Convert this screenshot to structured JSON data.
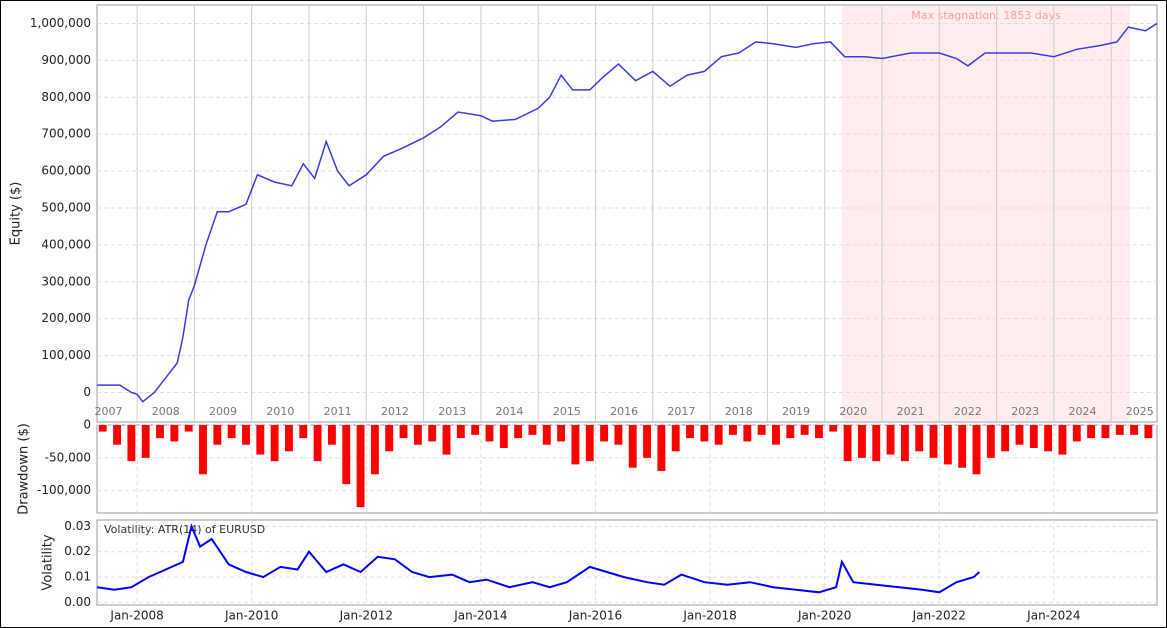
{
  "chart_data": [
    {
      "type": "line",
      "y_label": "Equity ($)",
      "color": "#3a3ae0",
      "xlim": [
        2007.3,
        2025.8
      ],
      "ylim": [
        -80000,
        1050000
      ],
      "yticks": [
        0,
        {
          "value": 100000,
          "label": "100,000"
        },
        {
          "value": 200000,
          "label": "200,000"
        },
        {
          "value": 300000,
          "label": "300,000"
        },
        {
          "value": 400000,
          "label": "400,000"
        },
        {
          "value": 500000,
          "label": "500,000"
        },
        {
          "value": 600000,
          "label": "600,000"
        },
        {
          "value": 700000,
          "label": "700,000"
        },
        {
          "value": 800000,
          "label": "800,000"
        },
        {
          "value": 900000,
          "label": "900,000"
        },
        {
          "value": 1000000,
          "label": "1,000,000"
        }
      ],
      "xticks": [
        2007,
        2008,
        2009,
        2010,
        2011,
        2012,
        2013,
        2014,
        2015,
        2016,
        2017,
        2018,
        2019,
        2020,
        2021,
        2022,
        2023,
        2024,
        2025
      ],
      "shade": {
        "range": [
          2020.3,
          2025.33
        ],
        "label": "Max stagnation: 1853 days"
      },
      "x": [
        2007.3,
        2007.7,
        2007.9,
        2008.0,
        2008.1,
        2008.3,
        2008.5,
        2008.7,
        2008.8,
        2008.9,
        2009.0,
        2009.2,
        2009.4,
        2009.6,
        2009.9,
        2010.1,
        2010.4,
        2010.7,
        2010.9,
        2011.1,
        2011.3,
        2011.5,
        2011.7,
        2012.0,
        2012.3,
        2012.6,
        2013.0,
        2013.3,
        2013.6,
        2014.0,
        2014.2,
        2014.6,
        2015.0,
        2015.2,
        2015.4,
        2015.6,
        2015.9,
        2016.1,
        2016.4,
        2016.7,
        2017.0,
        2017.3,
        2017.6,
        2017.9,
        2018.2,
        2018.5,
        2018.8,
        2019.1,
        2019.5,
        2019.8,
        2020.1,
        2020.35,
        2020.7,
        2021.0,
        2021.5,
        2022.0,
        2022.3,
        2022.5,
        2022.8,
        2023.2,
        2023.6,
        2024.0,
        2024.4,
        2024.8,
        2025.1,
        2025.3,
        2025.6,
        2025.8
      ],
      "values": [
        20000,
        20000,
        0,
        -5000,
        -25000,
        0,
        40000,
        80000,
        150000,
        250000,
        290000,
        400000,
        490000,
        490000,
        510000,
        590000,
        570000,
        560000,
        620000,
        580000,
        680000,
        600000,
        560000,
        590000,
        640000,
        660000,
        690000,
        720000,
        760000,
        750000,
        735000,
        740000,
        770000,
        800000,
        860000,
        820000,
        820000,
        850000,
        890000,
        845000,
        870000,
        830000,
        860000,
        870000,
        910000,
        920000,
        950000,
        945000,
        935000,
        945000,
        950000,
        910000,
        910000,
        905000,
        920000,
        920000,
        905000,
        885000,
        920000,
        920000,
        920000,
        910000,
        930000,
        940000,
        950000,
        990000,
        980000,
        1000000
      ]
    },
    {
      "type": "bar",
      "y_label": "Drawdown ($)",
      "color": "#ff0000",
      "xlim": [
        2007.3,
        2025.8
      ],
      "ylim": [
        -134000,
        0
      ],
      "yticks": [
        0,
        {
          "value": -50000,
          "label": "-50,000"
        },
        {
          "value": -100000,
          "label": "-100,000"
        }
      ],
      "x": [
        2007.4,
        2007.65,
        2007.9,
        2008.15,
        2008.4,
        2008.65,
        2008.9,
        2009.15,
        2009.4,
        2009.65,
        2009.9,
        2010.15,
        2010.4,
        2010.65,
        2010.9,
        2011.15,
        2011.4,
        2011.65,
        2011.9,
        2012.15,
        2012.4,
        2012.65,
        2012.9,
        2013.15,
        2013.4,
        2013.65,
        2013.9,
        2014.15,
        2014.4,
        2014.65,
        2014.9,
        2015.15,
        2015.4,
        2015.65,
        2015.9,
        2016.15,
        2016.4,
        2016.65,
        2016.9,
        2017.15,
        2017.4,
        2017.65,
        2017.9,
        2018.15,
        2018.4,
        2018.65,
        2018.9,
        2019.15,
        2019.4,
        2019.65,
        2019.9,
        2020.15,
        2020.4,
        2020.65,
        2020.9,
        2021.15,
        2021.4,
        2021.65,
        2021.9,
        2022.15,
        2022.4,
        2022.65,
        2022.9,
        2023.15,
        2023.4,
        2023.65,
        2023.9,
        2024.15,
        2024.4,
        2024.65,
        2024.9,
        2025.15,
        2025.4,
        2025.65
      ],
      "values": [
        -10000,
        -30000,
        -55000,
        -50000,
        -20000,
        -25000,
        -10000,
        -75000,
        -30000,
        -20000,
        -30000,
        -45000,
        -55000,
        -40000,
        -20000,
        -55000,
        -30000,
        -90000,
        -125000,
        -75000,
        -40000,
        -20000,
        -30000,
        -25000,
        -45000,
        -20000,
        -15000,
        -25000,
        -35000,
        -20000,
        -15000,
        -30000,
        -25000,
        -60000,
        -55000,
        -25000,
        -30000,
        -65000,
        -50000,
        -70000,
        -40000,
        -20000,
        -25000,
        -30000,
        -15000,
        -25000,
        -15000,
        -30000,
        -20000,
        -15000,
        -20000,
        -10000,
        -55000,
        -50000,
        -55000,
        -45000,
        -55000,
        -40000,
        -50000,
        -60000,
        -65000,
        -75000,
        -50000,
        -40000,
        -30000,
        -35000,
        -40000,
        -45000,
        -25000,
        -20000,
        -20000,
        -15000,
        -15000,
        -20000
      ]
    },
    {
      "type": "line",
      "y_label": "Volatility",
      "title": "Volatility: ATR(14) of EURUSD",
      "color": "#0000ff",
      "xlim": [
        2007.3,
        2025.8
      ],
      "ylim": [
        -0.001,
        0.0325
      ],
      "yticks": [
        {
          "value": 0,
          "label": "0.00"
        },
        {
          "value": 0.01,
          "label": "0.01"
        },
        {
          "value": 0.02,
          "label": "0.02"
        },
        {
          "value": 0.03,
          "label": "0.03"
        }
      ],
      "xticks": [
        {
          "value": 2008,
          "label": "Jan-2008"
        },
        {
          "value": 2010,
          "label": "Jan-2010"
        },
        {
          "value": 2012,
          "label": "Jan-2012"
        },
        {
          "value": 2014,
          "label": "Jan-2014"
        },
        {
          "value": 2016,
          "label": "Jan-2016"
        },
        {
          "value": 2018,
          "label": "Jan-2018"
        },
        {
          "value": 2020,
          "label": "Jan-2020"
        },
        {
          "value": 2022,
          "label": "Jan-2022"
        },
        {
          "value": 2024,
          "label": "Jan-2024"
        }
      ],
      "x": [
        2007.3,
        2007.6,
        2007.9,
        2008.2,
        2008.5,
        2008.8,
        2008.95,
        2009.1,
        2009.3,
        2009.6,
        2009.9,
        2010.2,
        2010.5,
        2010.8,
        2011.0,
        2011.3,
        2011.6,
        2011.9,
        2012.2,
        2012.5,
        2012.8,
        2013.1,
        2013.5,
        2013.8,
        2014.1,
        2014.5,
        2014.9,
        2015.2,
        2015.5,
        2015.9,
        2016.2,
        2016.5,
        2016.9,
        2017.2,
        2017.5,
        2017.9,
        2018.3,
        2018.7,
        2019.1,
        2019.5,
        2019.9,
        2020.2,
        2020.3,
        2020.5,
        2020.9,
        2021.3,
        2021.7,
        2022.0,
        2022.3,
        2022.6,
        2022.7
      ],
      "values": [
        0.006,
        0.005,
        0.006,
        0.01,
        0.013,
        0.016,
        0.03,
        0.022,
        0.025,
        0.015,
        0.012,
        0.01,
        0.014,
        0.013,
        0.02,
        0.012,
        0.015,
        0.012,
        0.018,
        0.017,
        0.012,
        0.01,
        0.011,
        0.008,
        0.009,
        0.006,
        0.008,
        0.006,
        0.008,
        0.014,
        0.012,
        0.01,
        0.008,
        0.007,
        0.011,
        0.008,
        0.007,
        0.008,
        0.006,
        0.005,
        0.004,
        0.006,
        0.016,
        0.008,
        0.007,
        0.006,
        0.005,
        0.004,
        0.008,
        0.01,
        0.012
      ]
    }
  ]
}
